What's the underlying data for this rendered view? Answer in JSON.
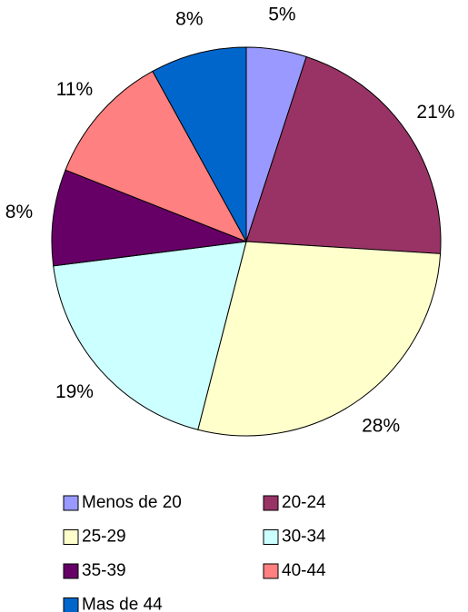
{
  "chart_data": {
    "type": "pie",
    "categories": [
      "Menos de 20",
      "20-24",
      "25-29",
      "30-34",
      "35-39",
      "40-44",
      "Mas de 44"
    ],
    "values": [
      5,
      21,
      28,
      19,
      8,
      11,
      8
    ],
    "value_labels": [
      "5%",
      "21%",
      "28%",
      "19%",
      "8%",
      "11%",
      "8%"
    ],
    "colors": [
      "#9999ff",
      "#993366",
      "#ffffcc",
      "#ccffff",
      "#660066",
      "#ff8080",
      "#0066cc"
    ],
    "legend": "bottom"
  }
}
